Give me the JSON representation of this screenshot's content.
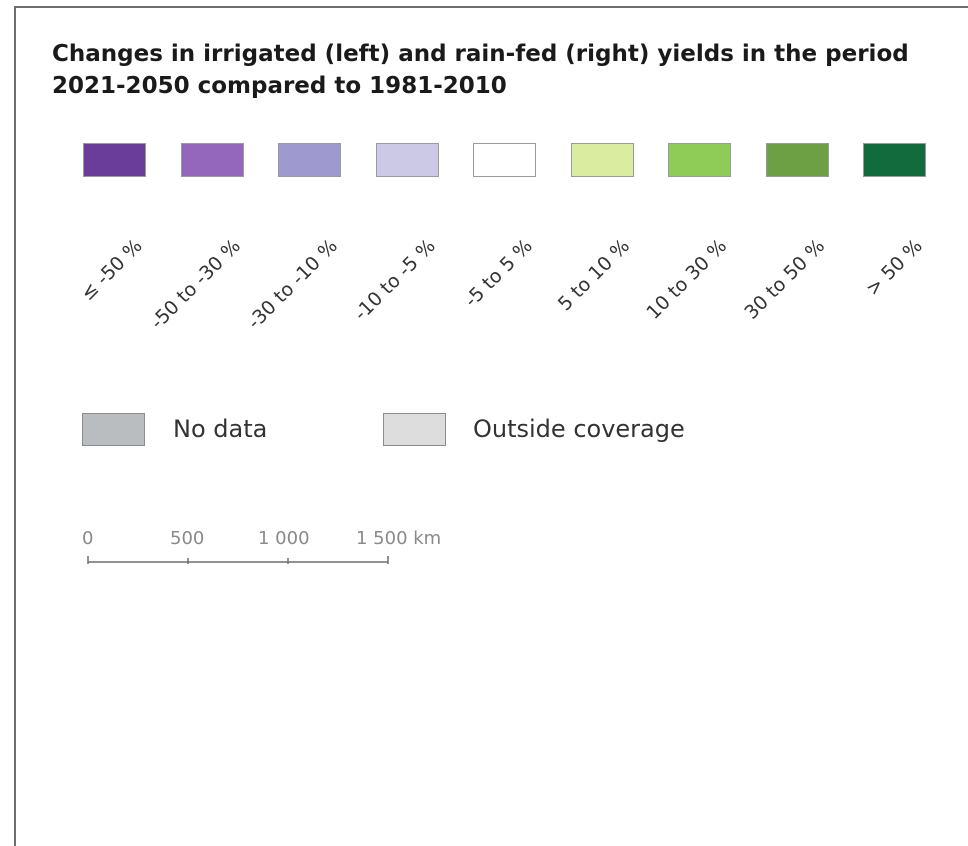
{
  "title": "Changes in irrigated (left) and rain-fed (right) yields in the period 2021-2050 compared to 1981-2010",
  "legend_classes": [
    {
      "label": "≤ -50 %",
      "color": "#6a3d9a"
    },
    {
      "label": "-50 to -30 %",
      "color": "#9467bd"
    },
    {
      "label": "-30 to -10 %",
      "color": "#9e9ad0"
    },
    {
      "label": "-10 to -5 %",
      "color": "#cbc9e6"
    },
    {
      "label": "-5 to 5 %",
      "color": "#ffffff"
    },
    {
      "label": "5 to 10 %",
      "color": "#d9ec9f"
    },
    {
      "label": "10 to 30 %",
      "color": "#8fcb57"
    },
    {
      "label": "30 to 50 %",
      "color": "#6d9f45"
    },
    {
      "label": "> 50 %",
      "color": "#116b3d"
    }
  ],
  "extra_legend": [
    {
      "label": "No data",
      "color": "#b9bdbf"
    },
    {
      "label": "Outside coverage",
      "color": "#dddddd"
    }
  ],
  "scale_bar": {
    "ticks": [
      "0",
      "500",
      "1 000",
      "1 500 km"
    ]
  }
}
